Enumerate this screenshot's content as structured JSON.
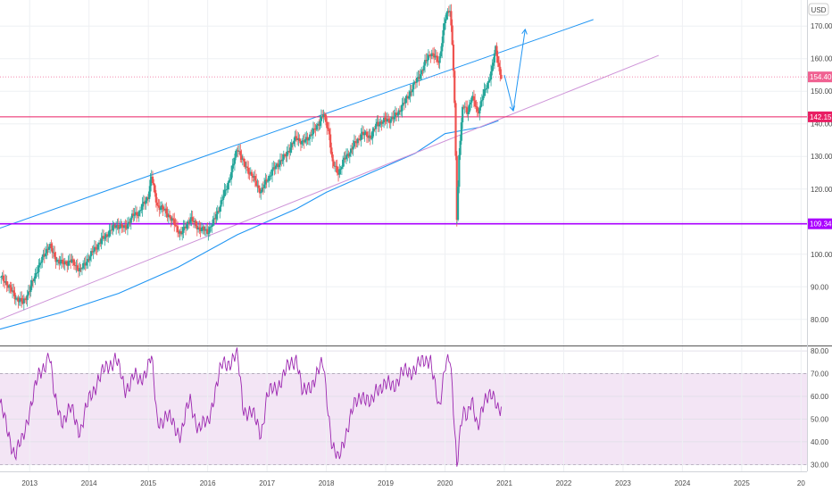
{
  "currency_label": "USD",
  "colors": {
    "up": "#26a69a",
    "down": "#ef5350",
    "channel": "#2196f3",
    "support_line": "#ce93d8",
    "ma": "#2196f3",
    "level_red": "#e91e63",
    "level_purple": "#aa00ff",
    "price_line": "#f06292",
    "rsi": "#9c27b0",
    "rsi_band": "#f3e5f5"
  },
  "chart_data": [
    {
      "type": "candlestick",
      "title": "",
      "xlabel": "",
      "ylabel": "",
      "x_ticks": [
        "2013",
        "2014",
        "2015",
        "2016",
        "2017",
        "2018",
        "2019",
        "2020",
        "2021",
        "2022",
        "2023",
        "2024",
        "2025",
        "20"
      ],
      "y_ticks": [
        80,
        90,
        100,
        110,
        120,
        130,
        140,
        150,
        160,
        170
      ],
      "ylim": [
        72,
        178
      ],
      "xlim": [
        2012.5,
        2026.1
      ],
      "grid": true,
      "price_path": [
        [
          2012.5,
          93
        ],
        [
          2012.62,
          91
        ],
        [
          2012.75,
          87
        ],
        [
          2012.88,
          85
        ],
        [
          2013.0,
          89
        ],
        [
          2013.12,
          95
        ],
        [
          2013.25,
          100
        ],
        [
          2013.33,
          103
        ],
        [
          2013.42,
          99
        ],
        [
          2013.55,
          97
        ],
        [
          2013.7,
          98
        ],
        [
          2013.85,
          95
        ],
        [
          2014.0,
          99
        ],
        [
          2014.15,
          103
        ],
        [
          2014.3,
          106
        ],
        [
          2014.45,
          109
        ],
        [
          2014.6,
          108
        ],
        [
          2014.75,
          112
        ],
        [
          2014.85,
          113
        ],
        [
          2015.0,
          118
        ],
        [
          2015.05,
          124
        ],
        [
          2015.15,
          115
        ],
        [
          2015.3,
          113
        ],
        [
          2015.45,
          109
        ],
        [
          2015.55,
          106
        ],
        [
          2015.7,
          111
        ],
        [
          2015.85,
          108
        ],
        [
          2016.0,
          107
        ],
        [
          2016.1,
          110
        ],
        [
          2016.25,
          117
        ],
        [
          2016.4,
          125
        ],
        [
          2016.5,
          133
        ],
        [
          2016.6,
          128
        ],
        [
          2016.75,
          124
        ],
        [
          2016.9,
          119
        ],
        [
          2017.0,
          123
        ],
        [
          2017.15,
          127
        ],
        [
          2017.3,
          130
        ],
        [
          2017.5,
          136
        ],
        [
          2017.6,
          134
        ],
        [
          2017.8,
          138
        ],
        [
          2017.95,
          143
        ],
        [
          2018.05,
          137
        ],
        [
          2018.1,
          128
        ],
        [
          2018.2,
          125
        ],
        [
          2018.3,
          129
        ],
        [
          2018.45,
          133
        ],
        [
          2018.6,
          137
        ],
        [
          2018.75,
          136
        ],
        [
          2018.85,
          140
        ],
        [
          2019.0,
          141
        ],
        [
          2019.15,
          142
        ],
        [
          2019.3,
          146
        ],
        [
          2019.45,
          151
        ],
        [
          2019.6,
          156
        ],
        [
          2019.75,
          162
        ],
        [
          2019.9,
          159
        ],
        [
          2020.0,
          172
        ],
        [
          2020.08,
          176
        ],
        [
          2020.13,
          163
        ],
        [
          2020.17,
          140
        ],
        [
          2020.2,
          110
        ],
        [
          2020.24,
          132
        ],
        [
          2020.3,
          146
        ],
        [
          2020.38,
          143
        ],
        [
          2020.45,
          149
        ],
        [
          2020.55,
          143
        ],
        [
          2020.62,
          148
        ],
        [
          2020.72,
          152
        ],
        [
          2020.8,
          158
        ],
        [
          2020.85,
          163
        ],
        [
          2020.88,
          160
        ],
        [
          2020.92,
          156
        ],
        [
          2020.96,
          154.4
        ]
      ],
      "wick_low": {
        "x": 2020.2,
        "low": 109.34
      },
      "channel_upper": {
        "x": [
          2012.5,
          2022.5
        ],
        "y": [
          108,
          172
        ]
      },
      "channel_lower": {
        "x": [
          2012.5,
          2023.6
        ],
        "y": [
          80,
          161
        ]
      },
      "moving_average": [
        [
          2012.5,
          77
        ],
        [
          2013.5,
          82
        ],
        [
          2014.5,
          88
        ],
        [
          2015.5,
          96
        ],
        [
          2016.5,
          106
        ],
        [
          2017.5,
          114
        ],
        [
          2018.0,
          119
        ],
        [
          2018.5,
          123
        ],
        [
          2019.0,
          127
        ],
        [
          2019.5,
          131
        ],
        [
          2020.0,
          137
        ],
        [
          2020.3,
          138
        ],
        [
          2020.6,
          139
        ],
        [
          2020.9,
          141
        ]
      ],
      "projection_arrow": [
        [
          2021.0,
          155
        ],
        [
          2021.15,
          144
        ],
        [
          2021.35,
          169
        ]
      ],
      "horizontal_levels": [
        {
          "name": "last_price",
          "value": 154.4,
          "label": "154.40",
          "style": "dotted"
        },
        {
          "name": "resistance",
          "value": 142.15,
          "label": "142.15",
          "style": "solid"
        },
        {
          "name": "support",
          "value": 109.34,
          "label": "109.34",
          "style": "solid"
        }
      ]
    },
    {
      "type": "line",
      "title": "",
      "xlabel": "",
      "ylabel": "",
      "y_ticks": [
        30,
        40,
        50,
        60,
        70,
        80
      ],
      "ylim": [
        27,
        82
      ],
      "band": [
        30,
        70
      ],
      "grid": true,
      "rsi_path": [
        [
          2012.5,
          57
        ],
        [
          2012.62,
          45
        ],
        [
          2012.75,
          35
        ],
        [
          2012.88,
          40
        ],
        [
          2013.0,
          55
        ],
        [
          2013.12,
          66
        ],
        [
          2013.25,
          74
        ],
        [
          2013.33,
          80
        ],
        [
          2013.42,
          58
        ],
        [
          2013.55,
          50
        ],
        [
          2013.7,
          54
        ],
        [
          2013.85,
          45
        ],
        [
          2014.0,
          58
        ],
        [
          2014.15,
          68
        ],
        [
          2014.3,
          72
        ],
        [
          2014.45,
          78
        ],
        [
          2014.6,
          62
        ],
        [
          2014.75,
          70
        ],
        [
          2014.85,
          65
        ],
        [
          2015.0,
          75
        ],
        [
          2015.05,
          78
        ],
        [
          2015.15,
          48
        ],
        [
          2015.3,
          52
        ],
        [
          2015.45,
          46
        ],
        [
          2015.55,
          44
        ],
        [
          2015.7,
          58
        ],
        [
          2015.85,
          46
        ],
        [
          2016.0,
          48
        ],
        [
          2016.1,
          60
        ],
        [
          2016.25,
          74
        ],
        [
          2016.4,
          76
        ],
        [
          2016.5,
          78
        ],
        [
          2016.6,
          55
        ],
        [
          2016.75,
          52
        ],
        [
          2016.9,
          44
        ],
        [
          2017.0,
          60
        ],
        [
          2017.15,
          64
        ],
        [
          2017.3,
          70
        ],
        [
          2017.5,
          78
        ],
        [
          2017.6,
          60
        ],
        [
          2017.8,
          68
        ],
        [
          2017.95,
          74
        ],
        [
          2018.05,
          50
        ],
        [
          2018.1,
          38
        ],
        [
          2018.2,
          31
        ],
        [
          2018.3,
          42
        ],
        [
          2018.45,
          54
        ],
        [
          2018.6,
          62
        ],
        [
          2018.75,
          55
        ],
        [
          2018.85,
          65
        ],
        [
          2019.0,
          64
        ],
        [
          2019.15,
          66
        ],
        [
          2019.3,
          70
        ],
        [
          2019.45,
          72
        ],
        [
          2019.6,
          74
        ],
        [
          2019.75,
          78
        ],
        [
          2019.9,
          52
        ],
        [
          2020.0,
          76
        ],
        [
          2020.08,
          78
        ],
        [
          2020.13,
          58
        ],
        [
          2020.17,
          40
        ],
        [
          2020.2,
          28
        ],
        [
          2020.24,
          42
        ],
        [
          2020.3,
          56
        ],
        [
          2020.38,
          50
        ],
        [
          2020.45,
          57
        ],
        [
          2020.55,
          48
        ],
        [
          2020.62,
          55
        ],
        [
          2020.72,
          58
        ],
        [
          2020.8,
          62
        ],
        [
          2020.85,
          60
        ],
        [
          2020.88,
          56
        ],
        [
          2020.92,
          54
        ],
        [
          2020.96,
          53
        ]
      ]
    }
  ]
}
